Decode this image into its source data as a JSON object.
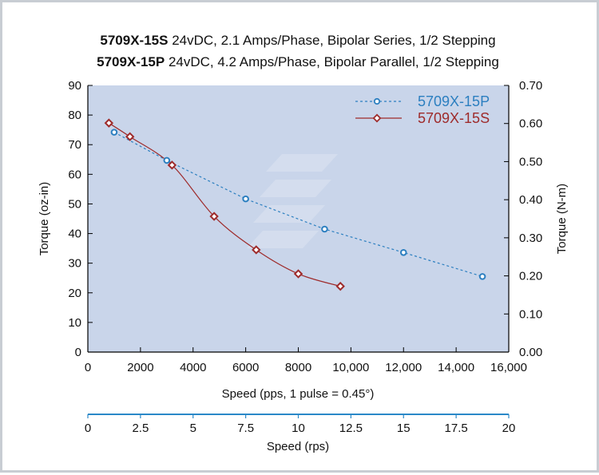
{
  "title": {
    "line1_bold": "5709X-15S",
    "line1_rest": " 24vDC, 2.1 Amps/Phase, Bipolar Series, 1/2 Stepping",
    "line2_bold": "5709X-15P",
    "line2_rest": " 24vDC, 4.2 Amps/Phase, Bipolar Parallel, 1/2 Stepping"
  },
  "colors": {
    "plot_bg": "#c9d5ea",
    "series_p": "#2c7fc0",
    "series_s": "#9e2b2b",
    "axis": "#000000",
    "secondary_axis": "#2a88c8"
  },
  "chart_data": {
    "type": "line",
    "title": "5709X-15S 24vDC, 2.1 Amps/Phase, Bipolar Series, 1/2 Stepping / 5709X-15P 24vDC, 4.2 Amps/Phase, Bipolar Parallel, 1/2 Stepping",
    "xlabel": "Speed (pps, 1 pulse = 0.45°)",
    "ylabel": "Torque (oz-in)",
    "y2label": "Torque (N-m)",
    "x2label": "Speed (rps)",
    "xlim": [
      0,
      16000
    ],
    "ylim": [
      0,
      90
    ],
    "y2lim": [
      0,
      0.7
    ],
    "x2lim": [
      0,
      20
    ],
    "x_ticks": [
      "0",
      "2000",
      "4000",
      "6000",
      "8000",
      "10,000",
      "12,000",
      "14,000",
      "16,000"
    ],
    "x_tick_values": [
      0,
      2000,
      4000,
      6000,
      8000,
      10000,
      12000,
      14000,
      16000
    ],
    "y_ticks": [
      "0",
      "10",
      "20",
      "30",
      "40",
      "50",
      "60",
      "70",
      "80",
      "90"
    ],
    "y_tick_values": [
      0,
      10,
      20,
      30,
      40,
      50,
      60,
      70,
      80,
      90
    ],
    "y2_ticks": [
      "0.00",
      "0.10",
      "0.20",
      "0.30",
      "0.40",
      "0.50",
      "0.60",
      "0.70"
    ],
    "y2_tick_values": [
      0,
      0.1,
      0.2,
      0.3,
      0.4,
      0.5,
      0.6,
      0.7
    ],
    "x2_ticks": [
      "0",
      "2.5",
      "5",
      "7.5",
      "10",
      "12.5",
      "15",
      "17.5",
      "20"
    ],
    "x2_tick_values": [
      0,
      2.5,
      5,
      7.5,
      10,
      12.5,
      15,
      17.5,
      20
    ],
    "legend_position": "top-right",
    "grid": false,
    "series": [
      {
        "name": "5709X-15P",
        "style": "dashed-circle",
        "x": [
          1000,
          3000,
          6000,
          9000,
          12000,
          15000
        ],
        "y": [
          74.2,
          64.7,
          51.7,
          41.5,
          33.6,
          25.5
        ]
      },
      {
        "name": "5709X-15S",
        "style": "solid-diamond",
        "x": [
          800,
          1600,
          3200,
          4800,
          6400,
          8000,
          9600
        ],
        "y": [
          77.3,
          72.7,
          63.1,
          45.8,
          34.5,
          26.4,
          22.2
        ]
      }
    ]
  }
}
